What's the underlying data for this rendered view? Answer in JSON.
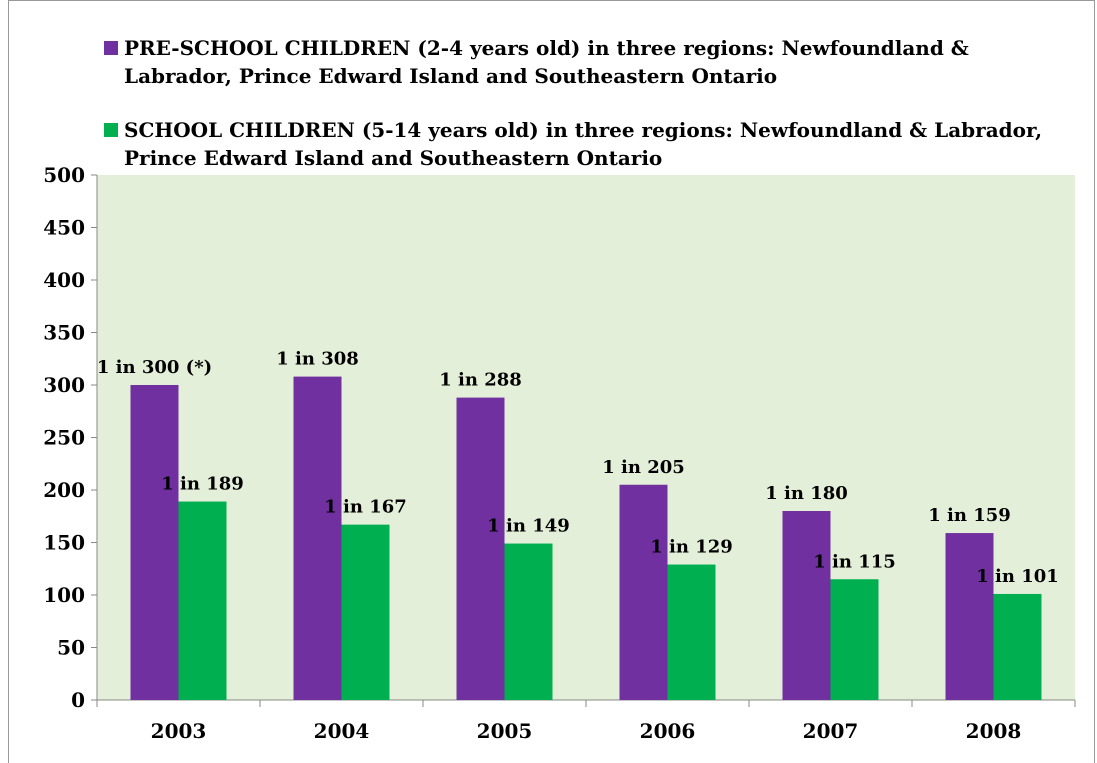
{
  "chart_data": {
    "type": "bar",
    "categories": [
      "2003",
      "2004",
      "2005",
      "2006",
      "2007",
      "2008"
    ],
    "series": [
      {
        "name": "PRE-SCHOOL CHILDREN (2-4 years old) in three regions: Newfoundland & Labrador, Prince Edward Island and Southeastern Ontario",
        "color": "#7030a0",
        "values": [
          300,
          308,
          288,
          205,
          180,
          159
        ],
        "value_labels": [
          "1 in 300 (*)",
          "1 in 308",
          "1 in 288",
          "1 in 205",
          "1 in 180",
          "1 in 159"
        ]
      },
      {
        "name": "SCHOOL CHILDREN (5-14 years old) in three regions: Newfoundland & Labrador, Prince Edward Island and Southeastern Ontario",
        "color": "#00b050",
        "values": [
          189,
          167,
          149,
          129,
          115,
          101
        ],
        "value_labels": [
          "1 in 189",
          "1 in 167",
          "1 in 149",
          "1 in 129",
          "1 in 115",
          "1 in 101"
        ]
      }
    ],
    "ylim": [
      0,
      500
    ],
    "yticks": [
      0,
      50,
      100,
      150,
      200,
      250,
      300,
      350,
      400,
      450,
      500
    ],
    "plot_background": "#e3efd9"
  }
}
